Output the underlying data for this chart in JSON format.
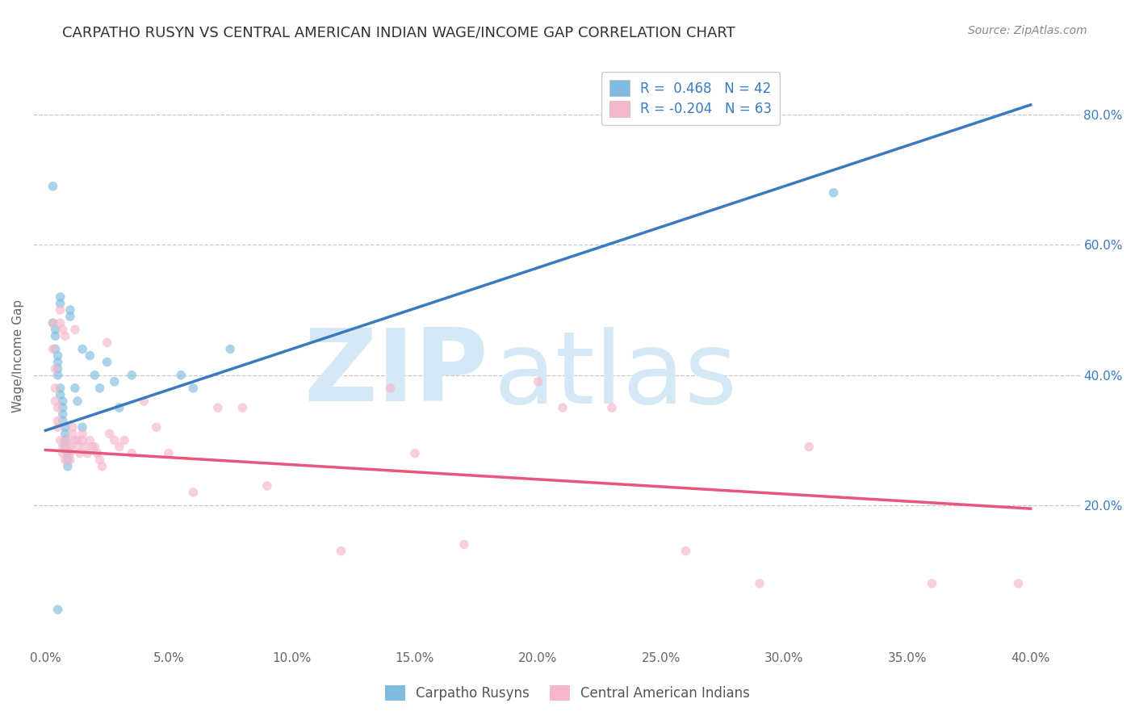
{
  "title": "CARPATHO RUSYN VS CENTRAL AMERICAN INDIAN WAGE/INCOME GAP CORRELATION CHART",
  "source": "Source: ZipAtlas.com",
  "ylabel": "Wage/Income Gap",
  "xlim": [
    -0.005,
    0.42
  ],
  "ylim": [
    -0.02,
    0.88
  ],
  "xticks": [
    0.0,
    0.05,
    0.1,
    0.15,
    0.2,
    0.25,
    0.3,
    0.35,
    0.4
  ],
  "yticks": [
    0.2,
    0.4,
    0.6,
    0.8
  ],
  "blue_R": 0.468,
  "blue_N": 42,
  "pink_R": -0.204,
  "pink_N": 63,
  "blue_color": "#7fbde0",
  "pink_color": "#f5b8cb",
  "blue_line_color": "#3a7abf",
  "pink_line_color": "#e8567a",
  "legend_label_blue": "Carpatho Rusyns",
  "legend_label_pink": "Central American Indians",
  "blue_scatter_x": [
    0.003,
    0.003,
    0.004,
    0.004,
    0.004,
    0.005,
    0.005,
    0.005,
    0.005,
    0.006,
    0.006,
    0.006,
    0.006,
    0.007,
    0.007,
    0.007,
    0.007,
    0.008,
    0.008,
    0.008,
    0.008,
    0.009,
    0.009,
    0.009,
    0.01,
    0.01,
    0.012,
    0.013,
    0.015,
    0.015,
    0.018,
    0.02,
    0.022,
    0.025,
    0.028,
    0.03,
    0.035,
    0.055,
    0.06,
    0.075,
    0.32,
    0.005
  ],
  "blue_scatter_y": [
    0.69,
    0.48,
    0.47,
    0.46,
    0.44,
    0.43,
    0.42,
    0.41,
    0.4,
    0.52,
    0.51,
    0.38,
    0.37,
    0.36,
    0.35,
    0.34,
    0.33,
    0.32,
    0.31,
    0.3,
    0.29,
    0.28,
    0.27,
    0.26,
    0.5,
    0.49,
    0.38,
    0.36,
    0.44,
    0.32,
    0.43,
    0.4,
    0.38,
    0.42,
    0.39,
    0.35,
    0.4,
    0.4,
    0.38,
    0.44,
    0.68,
    0.04
  ],
  "pink_scatter_x": [
    0.003,
    0.003,
    0.004,
    0.004,
    0.004,
    0.005,
    0.005,
    0.005,
    0.006,
    0.006,
    0.006,
    0.007,
    0.007,
    0.007,
    0.008,
    0.008,
    0.009,
    0.009,
    0.01,
    0.01,
    0.01,
    0.011,
    0.011,
    0.012,
    0.012,
    0.013,
    0.013,
    0.014,
    0.015,
    0.015,
    0.016,
    0.017,
    0.018,
    0.019,
    0.02,
    0.021,
    0.022,
    0.023,
    0.025,
    0.026,
    0.028,
    0.03,
    0.032,
    0.035,
    0.04,
    0.045,
    0.05,
    0.06,
    0.07,
    0.08,
    0.09,
    0.12,
    0.14,
    0.15,
    0.17,
    0.2,
    0.21,
    0.23,
    0.26,
    0.29,
    0.31,
    0.36,
    0.395
  ],
  "pink_scatter_y": [
    0.48,
    0.44,
    0.41,
    0.38,
    0.36,
    0.35,
    0.33,
    0.32,
    0.5,
    0.48,
    0.3,
    0.29,
    0.47,
    0.28,
    0.46,
    0.27,
    0.3,
    0.29,
    0.29,
    0.28,
    0.27,
    0.32,
    0.31,
    0.47,
    0.3,
    0.3,
    0.29,
    0.28,
    0.31,
    0.3,
    0.29,
    0.28,
    0.3,
    0.29,
    0.29,
    0.28,
    0.27,
    0.26,
    0.45,
    0.31,
    0.3,
    0.29,
    0.3,
    0.28,
    0.36,
    0.32,
    0.28,
    0.22,
    0.35,
    0.35,
    0.23,
    0.13,
    0.38,
    0.28,
    0.14,
    0.39,
    0.35,
    0.35,
    0.13,
    0.08,
    0.29,
    0.08,
    0.08
  ],
  "blue_trendline_x": [
    0.0,
    0.4
  ],
  "blue_trendline_y": [
    0.315,
    0.815
  ],
  "pink_trendline_x": [
    0.0,
    0.4
  ],
  "pink_trendline_y": [
    0.285,
    0.195
  ],
  "background_color": "#ffffff",
  "grid_color": "#c8c8c8",
  "watermark_zip": "ZIP",
  "watermark_atlas": "atlas",
  "watermark_color": "#d5e8f5",
  "title_fontsize": 13,
  "source_fontsize": 10,
  "axis_label_fontsize": 11,
  "tick_fontsize": 11,
  "legend_fontsize": 12,
  "marker_size": 70,
  "marker_alpha": 0.65
}
